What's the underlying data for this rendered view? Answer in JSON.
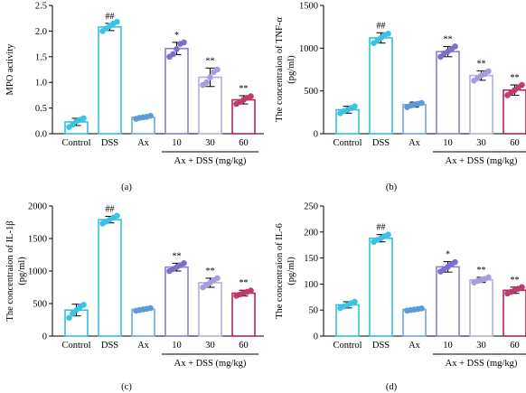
{
  "colors": {
    "cyan": "#31bfe0",
    "cyan_dot": "#3ac3e3",
    "blue": "#6fa7dc",
    "blue_dot": "#5b9bd8",
    "purple": "#8c7fcf",
    "purple_dot": "#7e6fcb",
    "lavender": "#b4addc",
    "lavender_dot": "#a59edb",
    "crimson": "#b0265b",
    "crimson_dot": "#c03a6e"
  },
  "chart_data": [
    {
      "type": "bar",
      "panel_label": "(a)",
      "ylabel": "MPO activity",
      "ylim": [
        0,
        2.5
      ],
      "yticks": [
        "0.0",
        "0.5",
        "1.0",
        "1.5",
        "2.0",
        "2.5"
      ],
      "categories": [
        "Control",
        "DSS",
        "Ax",
        "10",
        "30",
        "60"
      ],
      "group_label": "Ax + DSS (mg/kg)",
      "values": [
        0.23,
        2.08,
        0.32,
        1.66,
        1.1,
        0.66
      ],
      "errors": [
        0.07,
        0.07,
        0.03,
        0.12,
        0.18,
        0.08
      ],
      "points": [
        [
          0.13,
          0.18,
          0.24,
          0.27,
          0.3
        ],
        [
          2.0,
          2.05,
          2.1,
          2.15,
          2.18
        ],
        [
          0.29,
          0.31,
          0.32,
          0.33,
          0.35
        ],
        [
          1.5,
          1.55,
          1.65,
          1.75,
          1.78
        ],
        [
          0.95,
          1.0,
          1.1,
          1.2,
          1.25
        ],
        [
          0.58,
          0.62,
          0.66,
          0.7,
          0.73
        ]
      ],
      "annotations": [
        "",
        "##",
        "",
        "*",
        "**",
        "**"
      ]
    },
    {
      "type": "bar",
      "panel_label": "(b)",
      "ylabel": "The concentraion of TNF-α (pg/ml)",
      "ylim": [
        0,
        1500
      ],
      "yticks": [
        "0",
        "500",
        "1000",
        "1500"
      ],
      "categories": [
        "Control",
        "DSS",
        "Ax",
        "10",
        "30",
        "60"
      ],
      "group_label": "Ax + DSS (mg/kg)",
      "values": [
        280,
        1120,
        340,
        960,
        680,
        510
      ],
      "errors": [
        40,
        60,
        30,
        60,
        55,
        60
      ],
      "points": [
        [
          240,
          265,
          280,
          300,
          320
        ],
        [
          1060,
          1090,
          1120,
          1150,
          1170
        ],
        [
          310,
          330,
          340,
          350,
          360
        ],
        [
          900,
          940,
          960,
          990,
          1020
        ],
        [
          620,
          650,
          680,
          700,
          730
        ],
        [
          450,
          480,
          510,
          540,
          570
        ]
      ],
      "annotations": [
        "",
        "##",
        "",
        "**",
        "**",
        "**"
      ]
    },
    {
      "type": "bar",
      "panel_label": "(c)",
      "ylabel": "The concentraion of IL-1β (pg/ml)",
      "ylim": [
        0,
        2000
      ],
      "yticks": [
        "0",
        "500",
        "1000",
        "1500",
        "2000"
      ],
      "categories": [
        "Control",
        "DSS",
        "Ax",
        "10",
        "30",
        "60"
      ],
      "group_label": "Ax + DSS (mg/kg)",
      "values": [
        400,
        1790,
        410,
        1060,
        820,
        660
      ],
      "errors": [
        90,
        50,
        20,
        60,
        70,
        45
      ],
      "points": [
        [
          280,
          350,
          400,
          450,
          480
        ],
        [
          1730,
          1760,
          1790,
          1820,
          1850
        ],
        [
          390,
          400,
          410,
          420,
          430
        ],
        [
          1000,
          1030,
          1060,
          1090,
          1120
        ],
        [
          750,
          790,
          820,
          860,
          890
        ],
        [
          620,
          640,
          660,
          680,
          700
        ]
      ],
      "annotations": [
        "",
        "##",
        "",
        "**",
        "**",
        "**"
      ]
    },
    {
      "type": "bar",
      "panel_label": "(d)",
      "ylabel": "The concentraion of IL-6 (pg/ml)",
      "ylim": [
        0,
        250
      ],
      "yticks": [
        "0",
        "50",
        "100",
        "150",
        "200",
        "250"
      ],
      "categories": [
        "Control",
        "DSS",
        "Ax",
        "10",
        "30",
        "60"
      ],
      "group_label": "Ax + DSS (mg/kg)",
      "values": [
        60,
        188,
        51,
        133,
        108,
        88
      ],
      "errors": [
        6,
        7,
        2,
        10,
        5,
        6
      ],
      "points": [
        [
          54,
          57,
          60,
          63,
          66
        ],
        [
          181,
          185,
          188,
          192,
          195
        ],
        [
          49,
          50,
          51,
          52,
          53
        ],
        [
          124,
          129,
          133,
          138,
          142
        ],
        [
          103,
          106,
          108,
          110,
          113
        ],
        [
          82,
          85,
          88,
          91,
          94
        ]
      ],
      "annotations": [
        "",
        "##",
        "",
        "*",
        "**",
        "**"
      ]
    }
  ]
}
